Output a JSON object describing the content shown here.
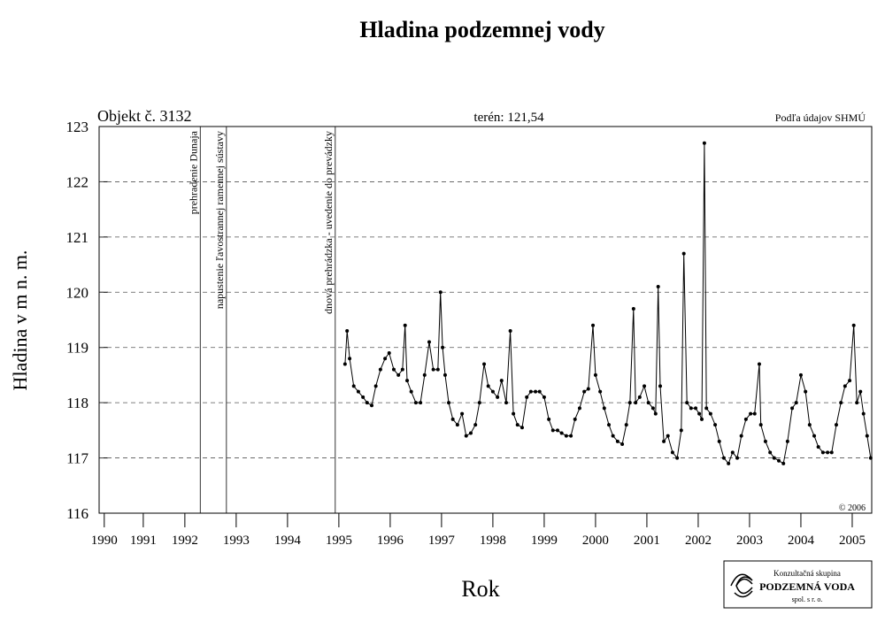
{
  "chart_data": {
    "type": "line",
    "title": "Hladina podzemnej vody",
    "subtitle": "Objekt č. 3132",
    "annotations": {
      "terrain": "terén: 121,54",
      "source": "Podľa údajov SHMÚ",
      "copyright": "© 2006"
    },
    "x_label": "Rok",
    "y_label": "Hladina v m n. m.",
    "xlim": [
      1990.83,
      2005.88
    ],
    "ylim": [
      116,
      123
    ],
    "yticks": [
      116,
      117,
      118,
      119,
      120,
      121,
      122,
      123
    ],
    "xticks": [
      {
        "value": 1990.93,
        "label": "1990"
      },
      {
        "value": 1991.69,
        "label": "1991"
      },
      {
        "value": 1992.5,
        "label": "1992"
      },
      {
        "value": 1993.5,
        "label": "1993"
      },
      {
        "value": 1994.5,
        "label": "1994"
      },
      {
        "value": 1995.5,
        "label": "1995"
      },
      {
        "value": 1996.5,
        "label": "1996"
      },
      {
        "value": 1997.5,
        "label": "1997"
      },
      {
        "value": 1998.5,
        "label": "1998"
      },
      {
        "value": 1999.5,
        "label": "1999"
      },
      {
        "value": 2000.5,
        "label": "2000"
      },
      {
        "value": 2001.5,
        "label": "2001"
      },
      {
        "value": 2002.5,
        "label": "2002"
      },
      {
        "value": 2003.5,
        "label": "2003"
      },
      {
        "value": 2004.5,
        "label": "2004"
      },
      {
        "value": 2005.5,
        "label": "2005"
      }
    ],
    "grid": true,
    "color": "#000000",
    "events": [
      {
        "x": 1992.8,
        "label": "prehradenie Dunaja"
      },
      {
        "x": 1993.31,
        "label": "napustenie ľavostrannej ramennej sústavy"
      },
      {
        "x": 1995.43,
        "label": "dnová prehrádzka - uvedenie do prevádzky"
      }
    ],
    "x": [
      1995.62,
      1995.66,
      1995.71,
      1995.79,
      1995.88,
      1995.97,
      1996.05,
      1996.14,
      1996.22,
      1996.31,
      1996.4,
      1996.48,
      1996.57,
      1996.66,
      1996.74,
      1996.79,
      1996.83,
      1996.91,
      1997.0,
      1997.09,
      1997.17,
      1997.26,
      1997.34,
      1997.43,
      1997.48,
      1997.52,
      1997.57,
      1997.64,
      1997.72,
      1997.81,
      1997.9,
      1997.98,
      1998.07,
      1998.16,
      1998.24,
      1998.33,
      1998.41,
      1998.5,
      1998.59,
      1998.67,
      1998.76,
      1998.84,
      1998.9,
      1998.98,
      1999.07,
      1999.16,
      1999.24,
      1999.33,
      1999.41,
      1999.5,
      1999.59,
      1999.67,
      1999.76,
      1999.84,
      1999.93,
      2000.02,
      2000.1,
      2000.19,
      2000.28,
      2000.36,
      2000.45,
      2000.5,
      2000.59,
      2000.67,
      2000.76,
      2000.84,
      2000.93,
      2001.02,
      2001.1,
      2001.17,
      2001.24,
      2001.28,
      2001.36,
      2001.45,
      2001.53,
      2001.62,
      2001.67,
      2001.72,
      2001.76,
      2001.83,
      2001.91,
      2002.0,
      2002.09,
      2002.17,
      2002.22,
      2002.28,
      2002.36,
      2002.45,
      2002.52,
      2002.57,
      2002.62,
      2002.66,
      2002.74,
      2002.83,
      2002.91,
      2003.0,
      2003.09,
      2003.17,
      2003.26,
      2003.34,
      2003.43,
      2003.52,
      2003.6,
      2003.69,
      2003.72,
      2003.81,
      2003.9,
      2003.98,
      2004.07,
      2004.16,
      2004.24,
      2004.33,
      2004.41,
      2004.5,
      2004.59,
      2004.67,
      2004.76,
      2004.84,
      2004.93,
      2005.02,
      2005.1,
      2005.19,
      2005.28,
      2005.36,
      2005.45,
      2005.53,
      2005.59,
      2005.66,
      2005.72,
      2005.79,
      2005.86
    ],
    "values": [
      118.7,
      119.3,
      118.8,
      118.3,
      118.2,
      118.1,
      118.0,
      117.95,
      118.3,
      118.6,
      118.8,
      118.9,
      118.6,
      118.5,
      118.6,
      119.4,
      118.4,
      118.2,
      118.0,
      118.0,
      118.5,
      119.1,
      118.6,
      118.6,
      120.0,
      119.0,
      118.5,
      118.0,
      117.7,
      117.6,
      117.8,
      117.4,
      117.45,
      117.6,
      118.0,
      118.7,
      118.3,
      118.2,
      118.1,
      118.4,
      118.0,
      119.3,
      117.8,
      117.6,
      117.55,
      118.1,
      118.2,
      118.2,
      118.2,
      118.1,
      117.7,
      117.5,
      117.5,
      117.45,
      117.4,
      117.4,
      117.7,
      117.9,
      118.2,
      118.25,
      119.4,
      118.5,
      118.2,
      117.9,
      117.6,
      117.4,
      117.3,
      117.25,
      117.6,
      118.0,
      119.7,
      118.0,
      118.1,
      118.3,
      118.0,
      117.9,
      117.8,
      120.1,
      118.3,
      117.3,
      117.4,
      117.1,
      117.0,
      117.5,
      120.7,
      118.0,
      117.9,
      117.9,
      117.8,
      117.7,
      122.7,
      117.9,
      117.8,
      117.6,
      117.3,
      117.0,
      116.9,
      117.1,
      117.0,
      117.4,
      117.7,
      117.8,
      117.8,
      118.7,
      117.6,
      117.3,
      117.1,
      117.0,
      116.95,
      116.9,
      117.3,
      117.9,
      118.0,
      118.5,
      118.2,
      117.6,
      117.4,
      117.2,
      117.1,
      117.1,
      117.1,
      117.6,
      118.0,
      118.3,
      118.4,
      119.4,
      118.0,
      118.2,
      117.8,
      117.4,
      117.0
    ]
  },
  "logo": {
    "line1": "Konzultačná skupina",
    "line2": "PODZEMNÁ VODA",
    "line3": "spol. s r. o."
  }
}
